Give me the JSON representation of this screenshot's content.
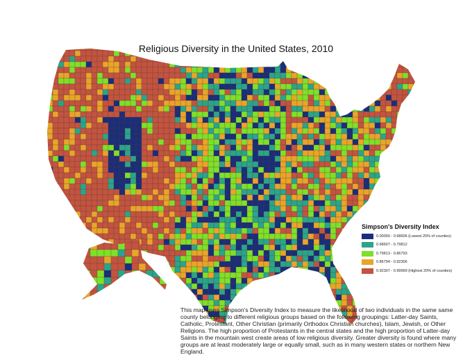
{
  "title": "Religious Diversity in the United States, 2010",
  "legend": {
    "title": "Simpson's Diversity Index",
    "items": [
      {
        "label": "0.00000 - 0.68606 (Lowest 20% of counties)",
        "color": "#1a2e7a"
      },
      {
        "label": "0.68607 - 0.79812",
        "color": "#2aa58a"
      },
      {
        "label": "0.79813 - 0.86793",
        "color": "#7fe02a"
      },
      {
        "label": "0.86794 - 0.92306",
        "color": "#e8a52a"
      },
      {
        "label": "0.92307 - 0.99999 (Highest 20% of counties)",
        "color": "#c25440"
      }
    ]
  },
  "caption": "This map uses Simpson's Diversity Index to measure the likelihood of two individuals in the same same county belonging to different religious groups based on the following groupings: Latter-day Saints, Catholic, Protestant, Other Christian (primarily Orthodox Christian churches), Islam, Jewish, or Other Religions. The high proportion of Protestants in the central states and the high proportion of Latter-day Saints in the mountain west create areas of low religious diversity. Greater diversity is found where many groups are at least moderately large or equally small, such as in many western states or northern New England."
}
